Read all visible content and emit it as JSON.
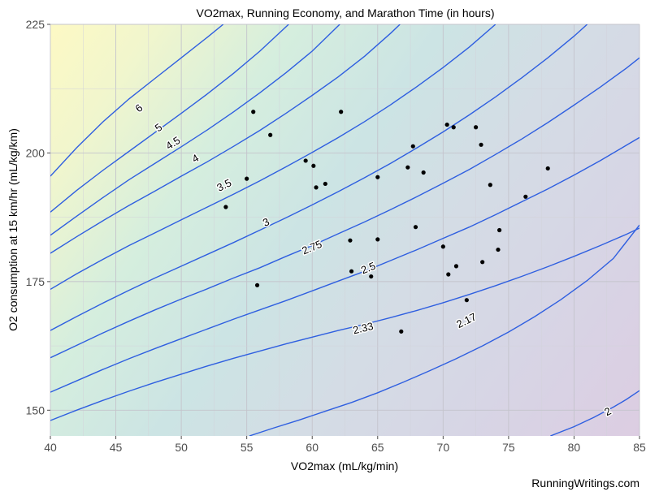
{
  "chart_data": {
    "type": "contour",
    "title": "VO2max, Running Economy, and Marathon Time (in hours)",
    "xlabel": "VO2max (mL/kg/min)",
    "ylabel": "O2 consumption at 15 km/hr (mL/kg/km)",
    "xlim": [
      40,
      85
    ],
    "ylim": [
      145,
      225
    ],
    "x_ticks": [
      40,
      45,
      50,
      55,
      60,
      65,
      70,
      75,
      80,
      85
    ],
    "y_ticks": [
      150,
      175,
      200,
      225
    ],
    "grid": true,
    "credit": "RunningWritings.com",
    "colors": {
      "line": "#2f5fe0",
      "point": "#000000",
      "fill_low": "#d9cfe3",
      "fill_mid": "#cde9e6",
      "fill_high": "#fdf9c4"
    },
    "contours": [
      {
        "label": "6",
        "points": [
          [
            40,
            195.5
          ],
          [
            42,
            201
          ],
          [
            44,
            206
          ],
          [
            46,
            210.5
          ],
          [
            48,
            214.5
          ],
          [
            50,
            218.5
          ],
          [
            52,
            222.5
          ],
          [
            53.2,
            225
          ]
        ],
        "label_at": [
          46.8,
          208.6
        ]
      },
      {
        "label": "5",
        "points": [
          [
            40,
            188.5
          ],
          [
            42,
            192.7
          ],
          [
            44,
            196.6
          ],
          [
            46,
            200.3
          ],
          [
            48,
            204
          ],
          [
            50,
            207.7
          ],
          [
            52,
            211.5
          ],
          [
            54,
            215.5
          ],
          [
            56,
            219.8
          ],
          [
            58.2,
            225
          ]
        ],
        "label_at": [
          48.3,
          204.8
        ]
      },
      {
        "label": "4.5",
        "points": [
          [
            40,
            184
          ],
          [
            42,
            187.7
          ],
          [
            44,
            191.3
          ],
          [
            46,
            194.8
          ],
          [
            48,
            198
          ],
          [
            50,
            201.2
          ],
          [
            52,
            204.5
          ],
          [
            54,
            208
          ],
          [
            56,
            211.7
          ],
          [
            58,
            215.6
          ],
          [
            60,
            219.8
          ],
          [
            62.1,
            225
          ]
        ],
        "label_at": [
          49.4,
          201.8
        ]
      },
      {
        "label": "4",
        "points": [
          [
            40,
            180.5
          ],
          [
            42,
            183.7
          ],
          [
            44,
            186.8
          ],
          [
            46,
            189.8
          ],
          [
            48,
            192.6
          ],
          [
            50,
            195.5
          ],
          [
            52,
            198.3
          ],
          [
            54,
            201.3
          ],
          [
            56,
            204.4
          ],
          [
            58,
            207.7
          ],
          [
            60,
            211.2
          ],
          [
            62,
            214.8
          ],
          [
            64,
            218.8
          ],
          [
            66,
            223.3
          ],
          [
            66.7,
            225
          ]
        ],
        "label_at": [
          51.1,
          198.8
        ]
      },
      {
        "label": "3.5",
        "points": [
          [
            40,
            173.5
          ],
          [
            42,
            176.5
          ],
          [
            44,
            179.3
          ],
          [
            46,
            182
          ],
          [
            48,
            184.5
          ],
          [
            50,
            187
          ],
          [
            52,
            189.5
          ],
          [
            54,
            192
          ],
          [
            56,
            194.6
          ],
          [
            58,
            197.3
          ],
          [
            60,
            200.1
          ],
          [
            62,
            203
          ],
          [
            64,
            206.1
          ],
          [
            66,
            209.4
          ],
          [
            68,
            212.9
          ],
          [
            70,
            216.6
          ],
          [
            72,
            220.6
          ],
          [
            74,
            225
          ]
        ],
        "label_at": [
          53.3,
          193.6
        ]
      },
      {
        "label": "3",
        "points": [
          [
            40,
            165.5
          ],
          [
            42,
            168.2
          ],
          [
            44,
            170.8
          ],
          [
            46,
            173.3
          ],
          [
            48,
            175.7
          ],
          [
            50,
            178
          ],
          [
            52,
            180.3
          ],
          [
            54,
            182.6
          ],
          [
            56,
            185
          ],
          [
            58,
            187.4
          ],
          [
            60,
            189.9
          ],
          [
            62,
            192.5
          ],
          [
            64,
            195.2
          ],
          [
            66,
            198
          ],
          [
            68,
            201
          ],
          [
            70,
            204.1
          ],
          [
            72,
            207.4
          ],
          [
            74,
            210.9
          ],
          [
            76,
            214.6
          ],
          [
            78,
            218.5
          ],
          [
            80,
            222.7
          ],
          [
            81,
            225
          ]
        ],
        "label_at": [
          56.5,
          186.4
        ]
      },
      {
        "label": "2.75",
        "points": [
          [
            40,
            160.2
          ],
          [
            42,
            162.6
          ],
          [
            44,
            165
          ],
          [
            46,
            167.3
          ],
          [
            48,
            169.5
          ],
          [
            50,
            171.6
          ],
          [
            52,
            173.6
          ],
          [
            54,
            175.7
          ],
          [
            56,
            177.7
          ],
          [
            58,
            179.9
          ],
          [
            60,
            182
          ],
          [
            62,
            184.3
          ],
          [
            64,
            186.6
          ],
          [
            66,
            189
          ],
          [
            68,
            191.5
          ],
          [
            70,
            194.1
          ],
          [
            72,
            196.8
          ],
          [
            74,
            199.7
          ],
          [
            76,
            202.7
          ],
          [
            78,
            205.9
          ],
          [
            80,
            209.3
          ],
          [
            82,
            212.8
          ],
          [
            84,
            216.5
          ],
          [
            85,
            218.5
          ]
        ],
        "label_at": [
          60,
          181.5
        ]
      },
      {
        "label": "2.5",
        "points": [
          [
            40,
            153.5
          ],
          [
            42,
            155.7
          ],
          [
            44,
            157.9
          ],
          [
            46,
            160
          ],
          [
            48,
            162
          ],
          [
            50,
            163.9
          ],
          [
            52,
            165.8
          ],
          [
            54,
            167.7
          ],
          [
            56,
            169.5
          ],
          [
            58,
            171.3
          ],
          [
            60,
            173.2
          ],
          [
            62,
            175.1
          ],
          [
            64,
            177
          ],
          [
            66,
            179.1
          ],
          [
            68,
            181.2
          ],
          [
            70,
            183.4
          ],
          [
            72,
            185.6
          ],
          [
            74,
            188
          ],
          [
            76,
            190.5
          ],
          [
            78,
            193
          ],
          [
            80,
            195.7
          ],
          [
            82,
            198.5
          ],
          [
            84,
            201.5
          ],
          [
            85,
            203
          ]
        ],
        "label_at": [
          64.3,
          177.5
        ]
      },
      {
        "label": "2.33",
        "points": [
          [
            40,
            148
          ],
          [
            42,
            150
          ],
          [
            44,
            151.9
          ],
          [
            46,
            153.7
          ],
          [
            48,
            155.4
          ],
          [
            50,
            157
          ],
          [
            52,
            158.6
          ],
          [
            54,
            160.1
          ],
          [
            56,
            161.5
          ],
          [
            58,
            162.9
          ],
          [
            60,
            164.2
          ],
          [
            62,
            165.5
          ],
          [
            64,
            166.7
          ],
          [
            66,
            168
          ],
          [
            68,
            169.4
          ],
          [
            70,
            170.9
          ],
          [
            72,
            172.5
          ],
          [
            74,
            174.2
          ],
          [
            76,
            176
          ],
          [
            78,
            177.9
          ],
          [
            80,
            179.9
          ],
          [
            82,
            182
          ],
          [
            84,
            184.2
          ],
          [
            85,
            185.4
          ]
        ],
        "label_at": [
          63.9,
          165.8
        ]
      },
      {
        "label": "2.17",
        "points": [
          [
            55.2,
            145
          ],
          [
            57,
            146.5
          ],
          [
            59,
            148.1
          ],
          [
            61,
            149.8
          ],
          [
            63,
            151.5
          ],
          [
            65,
            153.4
          ],
          [
            67,
            155.5
          ],
          [
            69,
            157.7
          ],
          [
            71,
            160
          ],
          [
            73,
            162.5
          ],
          [
            75,
            165.2
          ],
          [
            77,
            168.2
          ],
          [
            79,
            171.5
          ],
          [
            81,
            175.2
          ],
          [
            83,
            179.5
          ],
          [
            85,
            186
          ]
        ],
        "label_at": [
          71.8,
          167.3
        ]
      },
      {
        "label": "2",
        "points": [
          [
            78.2,
            145
          ],
          [
            80,
            146.8
          ],
          [
            81.5,
            148.6
          ],
          [
            83,
            150.6
          ],
          [
            84,
            152.1
          ],
          [
            85,
            153.8
          ]
        ],
        "label_at": [
          82.6,
          149.6
        ]
      }
    ],
    "points": [
      [
        55.5,
        208
      ],
      [
        56.8,
        203.5
      ],
      [
        62.2,
        208
      ],
      [
        59.5,
        198.5
      ],
      [
        60.1,
        197.5
      ],
      [
        55,
        195
      ],
      [
        53.4,
        189.5
      ],
      [
        60.3,
        193.3
      ],
      [
        61,
        194
      ],
      [
        65,
        195.3
      ],
      [
        67.3,
        197.2
      ],
      [
        67.7,
        201.3
      ],
      [
        68.5,
        196.2
      ],
      [
        70.3,
        205.5
      ],
      [
        70.8,
        205
      ],
      [
        72.5,
        205
      ],
      [
        72.9,
        201.6
      ],
      [
        73.6,
        193.8
      ],
      [
        76.3,
        191.5
      ],
      [
        78,
        197
      ],
      [
        74.3,
        185
      ],
      [
        74.2,
        181.2
      ],
      [
        73,
        178.8
      ],
      [
        71,
        178
      ],
      [
        70.4,
        176.4
      ],
      [
        70,
        181.8
      ],
      [
        67.9,
        185.6
      ],
      [
        65,
        183.2
      ],
      [
        62.9,
        183
      ],
      [
        63,
        177
      ],
      [
        64.5,
        176
      ],
      [
        55.8,
        174.3
      ],
      [
        71.8,
        171.4
      ],
      [
        66.8,
        165.3
      ]
    ]
  }
}
